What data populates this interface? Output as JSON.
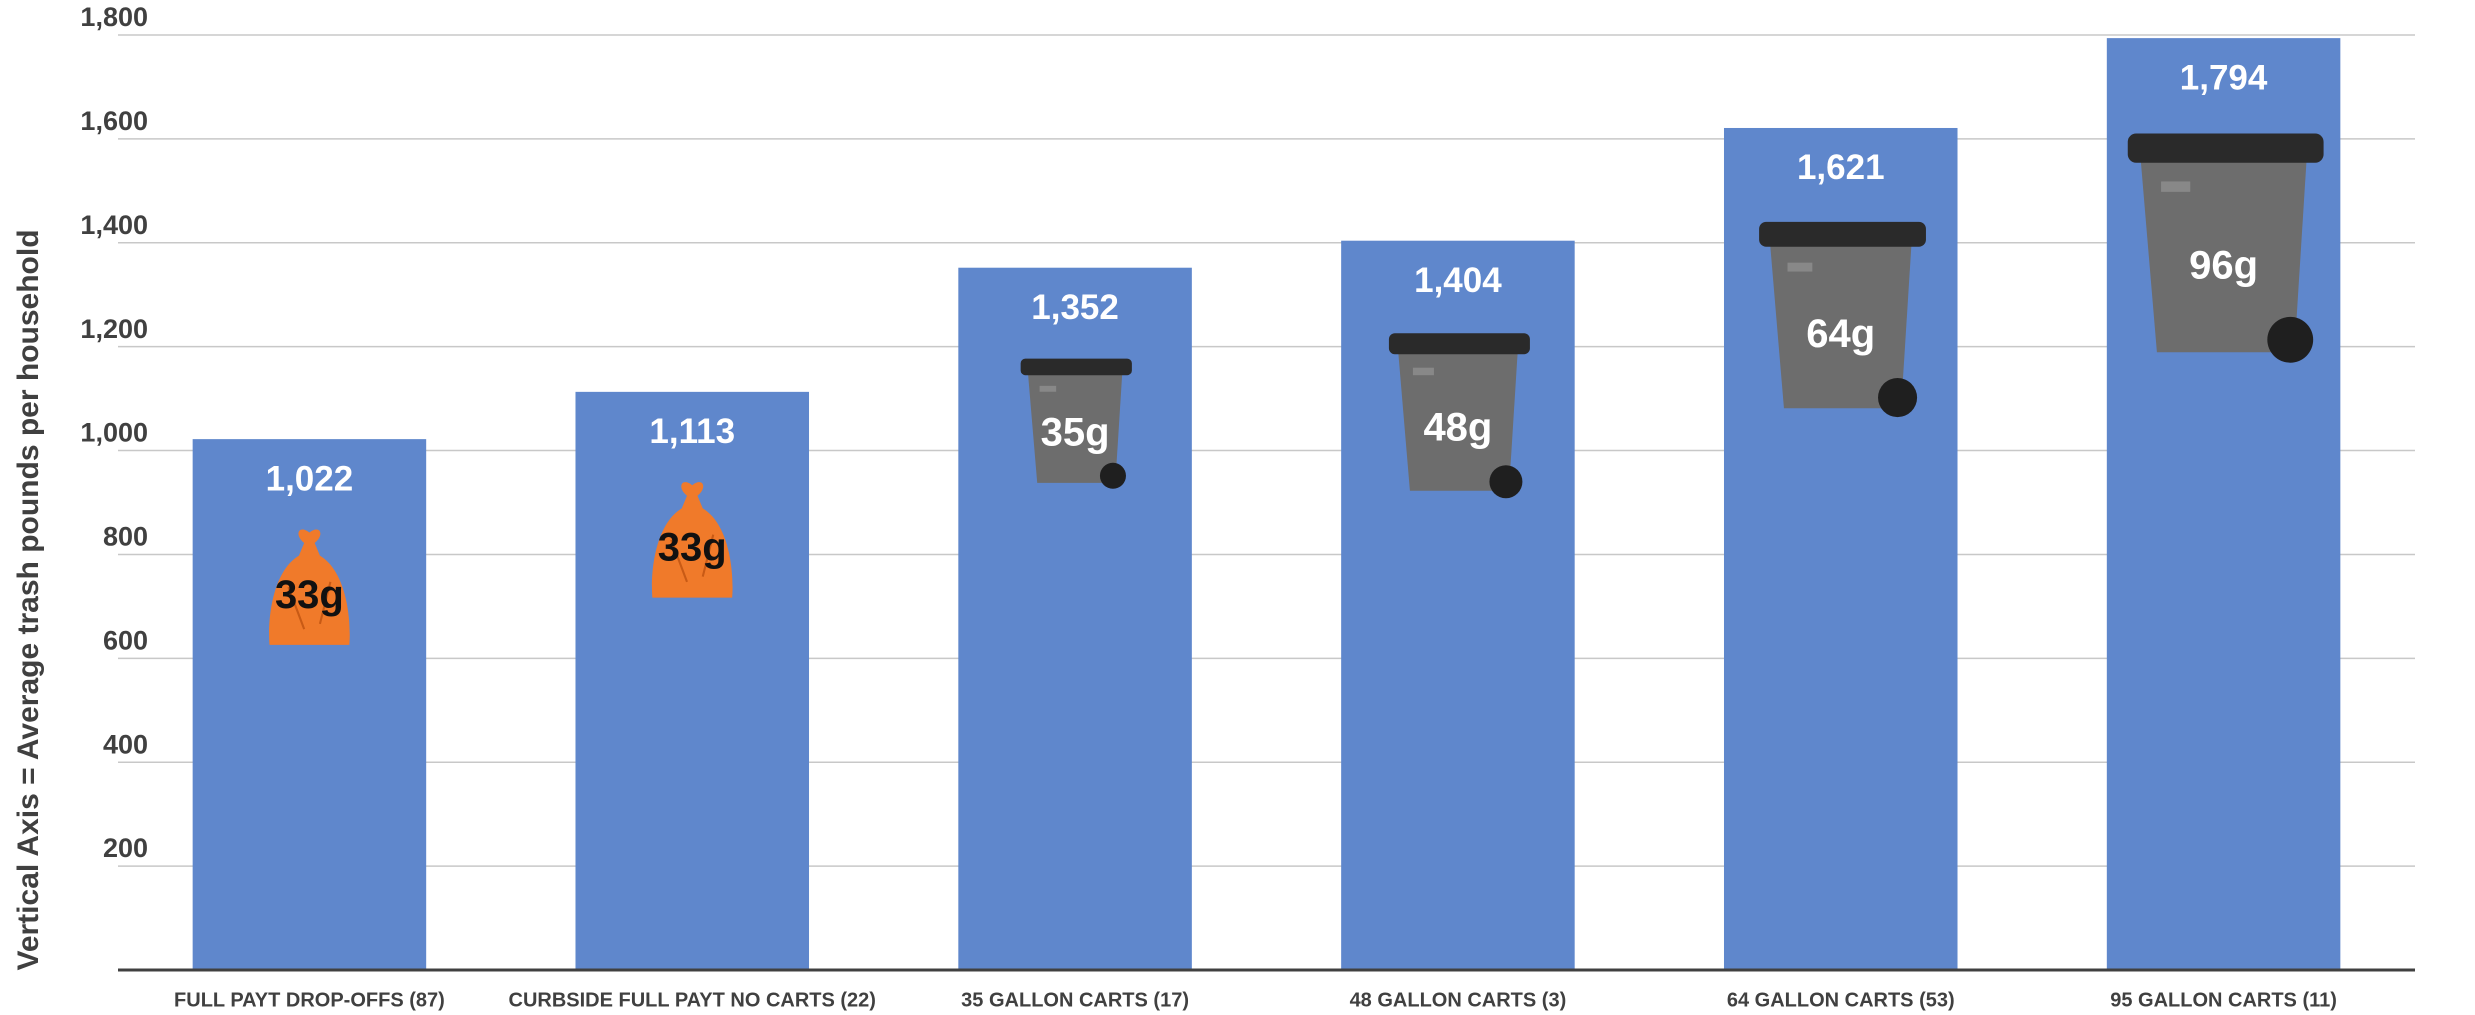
{
  "chart_data": {
    "type": "bar",
    "y_axis_label": "Vertical  Axis = Average trash pounds per household",
    "categories": [
      "FULL PAYT DROP-OFFS (87)",
      "CURBSIDE FULL PAYT NO CARTS (22)",
      "35 GALLON CARTS (17)",
      "48 GALLON CARTS (3)",
      "64 GALLON CARTS (53)",
      "95 GALLON CARTS (11)"
    ],
    "values": [
      1022,
      1113,
      1352,
      1404,
      1621,
      1794
    ],
    "value_labels": [
      "1,022",
      "1,113",
      "1,352",
      "1,404",
      "1,621",
      "1,794"
    ],
    "annotations": [
      "33g",
      "33g",
      "35g",
      "48g",
      "64g",
      "96g"
    ],
    "color": "#5f87cc",
    "ylim": [
      0,
      1800
    ],
    "yticks": [
      200,
      400,
      600,
      800,
      {
        "value": 1000,
        "label": "1,000"
      },
      {
        "value": 1200,
        "label": "1,200"
      },
      {
        "value": 1400,
        "label": "1,400"
      },
      {
        "value": 1600,
        "label": "1,600"
      },
      {
        "value": 1800,
        "label": "1,800"
      }
    ],
    "grid": true
  }
}
